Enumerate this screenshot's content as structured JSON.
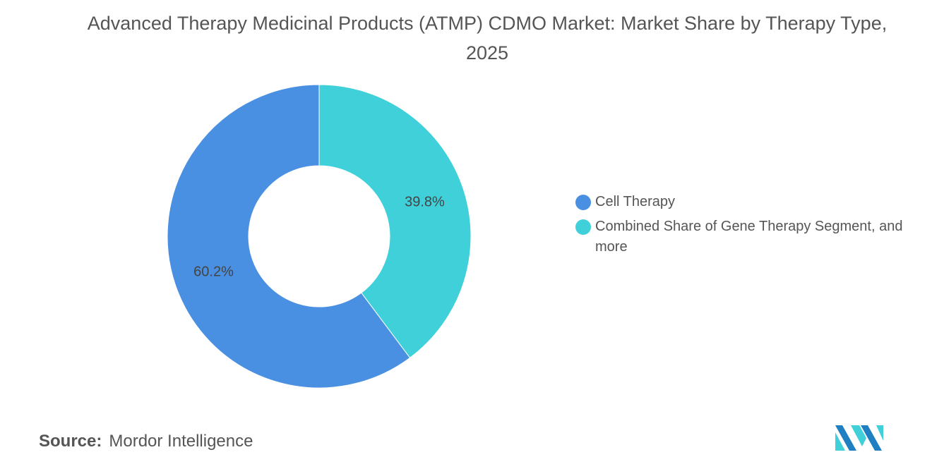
{
  "chart_data": {
    "type": "pie",
    "donut": true,
    "title": "Advanced Therapy Medicinal Products (ATMP) CDMO Market: Market Share by Therapy Type, 2025",
    "categories": [
      "Combined Share of Gene Therapy Segment, and more",
      "Cell Therapy"
    ],
    "values": [
      39.8,
      60.2
    ],
    "labels": [
      "39.8%",
      "60.2%"
    ],
    "colors": [
      "#40D0DA",
      "#4A90E2"
    ],
    "legend": {
      "placement": "right",
      "items": [
        {
          "label": "Cell Therapy",
          "color": "#4A90E2"
        },
        {
          "label": "Combined Share of Gene Therapy Segment, and more",
          "color": "#40D0DA"
        }
      ]
    }
  },
  "source": {
    "label": "Source:",
    "value": "Mordor Intelligence"
  },
  "logo": {
    "colors": [
      "#1F7FC0",
      "#40D0DA"
    ]
  }
}
